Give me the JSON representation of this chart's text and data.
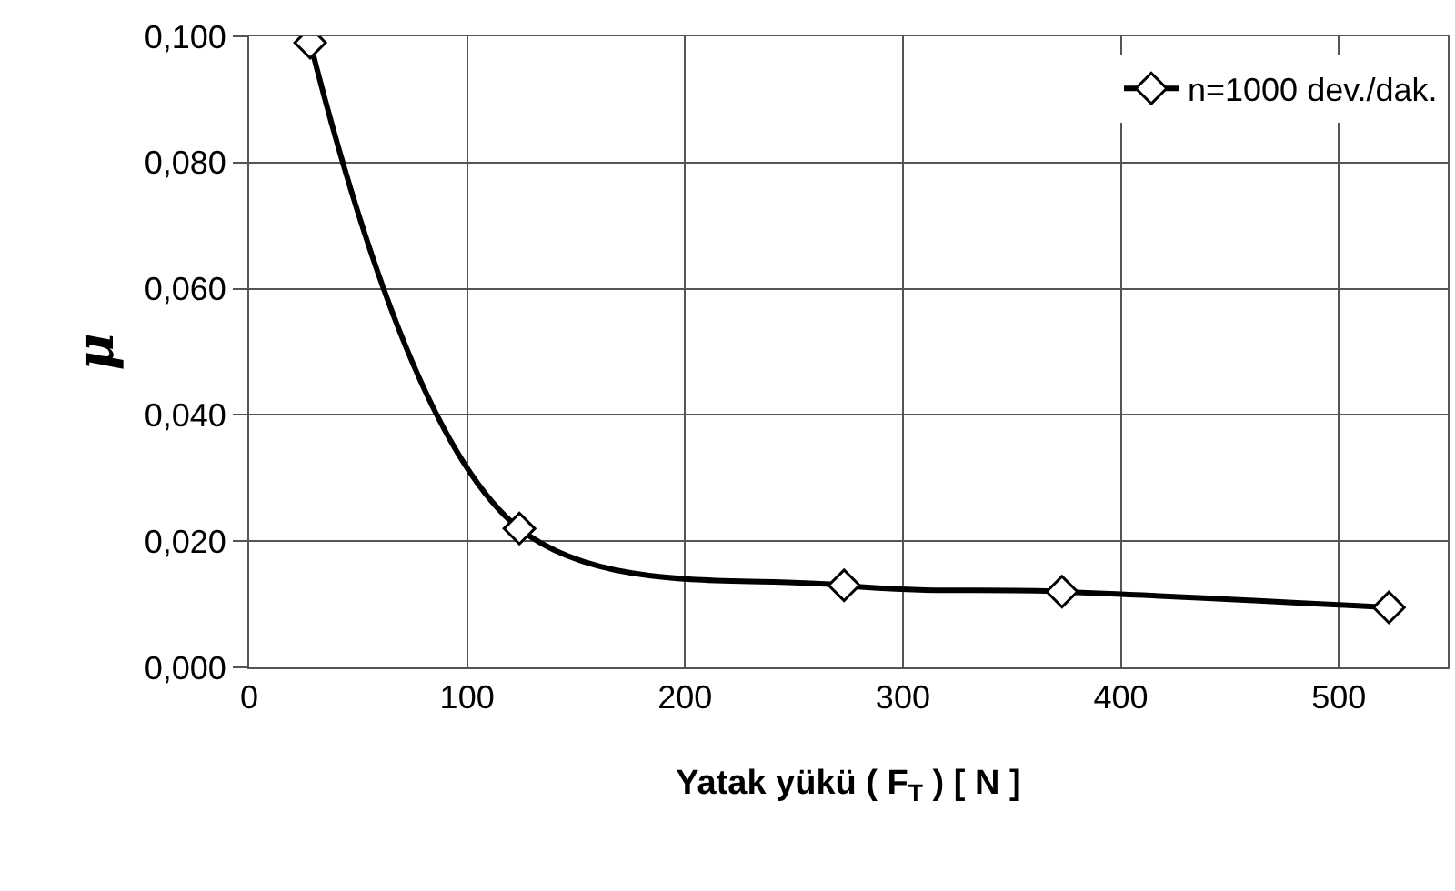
{
  "chart_data": {
    "type": "line",
    "xlabel": "Yatak yükü ( F$_{T}$ ) [ N ]",
    "ylabel": "μ",
    "x": [
      28,
      124,
      273,
      373,
      523
    ],
    "series": [
      {
        "name": "n=1000 dev./dak.",
        "color": "#000000",
        "values": [
          0.099,
          0.022,
          0.013,
          0.012,
          0.0095
        ]
      }
    ],
    "xlim": [
      0,
      550
    ],
    "xticks": [
      0,
      100,
      200,
      300,
      400,
      500
    ],
    "ylim": [
      0,
      0.1
    ],
    "yticks": [
      {
        "value": 0,
        "label": "0,000"
      },
      {
        "value": 0.02,
        "label": "0,020"
      },
      {
        "value": 0.04,
        "label": "0,040"
      },
      {
        "value": 0.06,
        "label": "0,060"
      },
      {
        "value": 0.08,
        "label": "0,080"
      },
      {
        "value": 0.1,
        "label": "0,100"
      }
    ],
    "grid": true,
    "legend": "top right",
    "marker": "diamond",
    "line_style": "solid"
  }
}
